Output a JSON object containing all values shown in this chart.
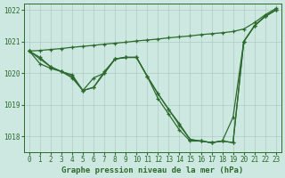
{
  "title": "Graphe pression niveau de la mer (hPa)",
  "xlim": [
    -0.5,
    23.5
  ],
  "ylim": [
    1017.5,
    1022.2
  ],
  "yticks": [
    1018,
    1019,
    1020,
    1021,
    1022
  ],
  "xticks": [
    0,
    1,
    2,
    3,
    4,
    5,
    6,
    7,
    8,
    9,
    10,
    11,
    12,
    13,
    14,
    15,
    16,
    17,
    18,
    19,
    20,
    21,
    22,
    23
  ],
  "bg_color": "#cce8e0",
  "grid_color": "#aaccC4",
  "line_color": "#2d6a2d",
  "lines": [
    {
      "x": [
        0,
        1,
        2,
        3,
        4,
        5,
        6,
        7,
        8,
        9,
        10,
        11,
        12,
        13,
        14,
        15,
        16,
        17,
        18,
        19,
        20,
        21,
        22,
        23
      ],
      "y": [
        1020.7,
        1020.72,
        1020.75,
        1020.78,
        1020.82,
        1020.85,
        1020.88,
        1020.92,
        1020.95,
        1020.98,
        1021.02,
        1021.05,
        1021.08,
        1021.12,
        1021.15,
        1021.18,
        1021.22,
        1021.25,
        1021.28,
        1021.32,
        1021.4,
        1021.6,
        1021.85,
        1022.05
      ]
    },
    {
      "x": [
        0,
        1,
        2,
        3,
        4,
        5,
        6,
        7,
        8,
        9,
        10,
        11,
        12,
        13,
        14,
        15,
        16,
        17,
        18,
        19,
        20,
        21,
        22,
        23
      ],
      "y": [
        1020.7,
        1020.5,
        1020.2,
        1020.05,
        1019.95,
        1019.45,
        1019.55,
        1020.0,
        1020.45,
        1020.5,
        1020.5,
        1019.9,
        1019.35,
        1018.85,
        1018.4,
        1017.9,
        1017.85,
        1017.8,
        1017.85,
        1017.8,
        1021.0,
        1021.5,
        1021.8,
        1022.0
      ]
    },
    {
      "x": [
        0,
        1,
        2,
        3,
        4,
        5,
        6,
        7,
        8,
        9,
        10,
        11,
        12,
        13,
        14,
        15,
        16,
        17,
        18,
        19,
        20,
        21,
        22,
        23
      ],
      "y": [
        1020.7,
        1020.45,
        1020.2,
        1020.05,
        1019.9,
        1019.45,
        1019.55,
        1020.05,
        1020.45,
        1020.5,
        1020.5,
        1019.9,
        1019.35,
        1018.85,
        1018.35,
        1017.9,
        1017.85,
        1017.8,
        1017.85,
        1017.8,
        1021.0,
        1021.5,
        1021.8,
        1022.0
      ]
    },
    {
      "x": [
        0,
        1,
        2,
        3,
        4,
        5,
        6,
        7,
        8,
        9,
        10,
        11,
        12,
        13,
        14,
        15,
        16,
        17,
        18,
        19,
        20,
        21,
        22,
        23
      ],
      "y": [
        1020.7,
        1020.3,
        1020.15,
        1020.05,
        1019.85,
        1019.45,
        1019.85,
        1020.0,
        1020.45,
        1020.5,
        1020.5,
        1019.9,
        1019.2,
        1018.7,
        1018.2,
        1017.85,
        1017.85,
        1017.8,
        1017.85,
        1018.6,
        1021.0,
        1021.5,
        1021.8,
        1022.0
      ]
    }
  ],
  "line_width": 0.9,
  "marker_size": 3.5,
  "tick_fontsize": 5.5,
  "label_fontsize": 6.5
}
